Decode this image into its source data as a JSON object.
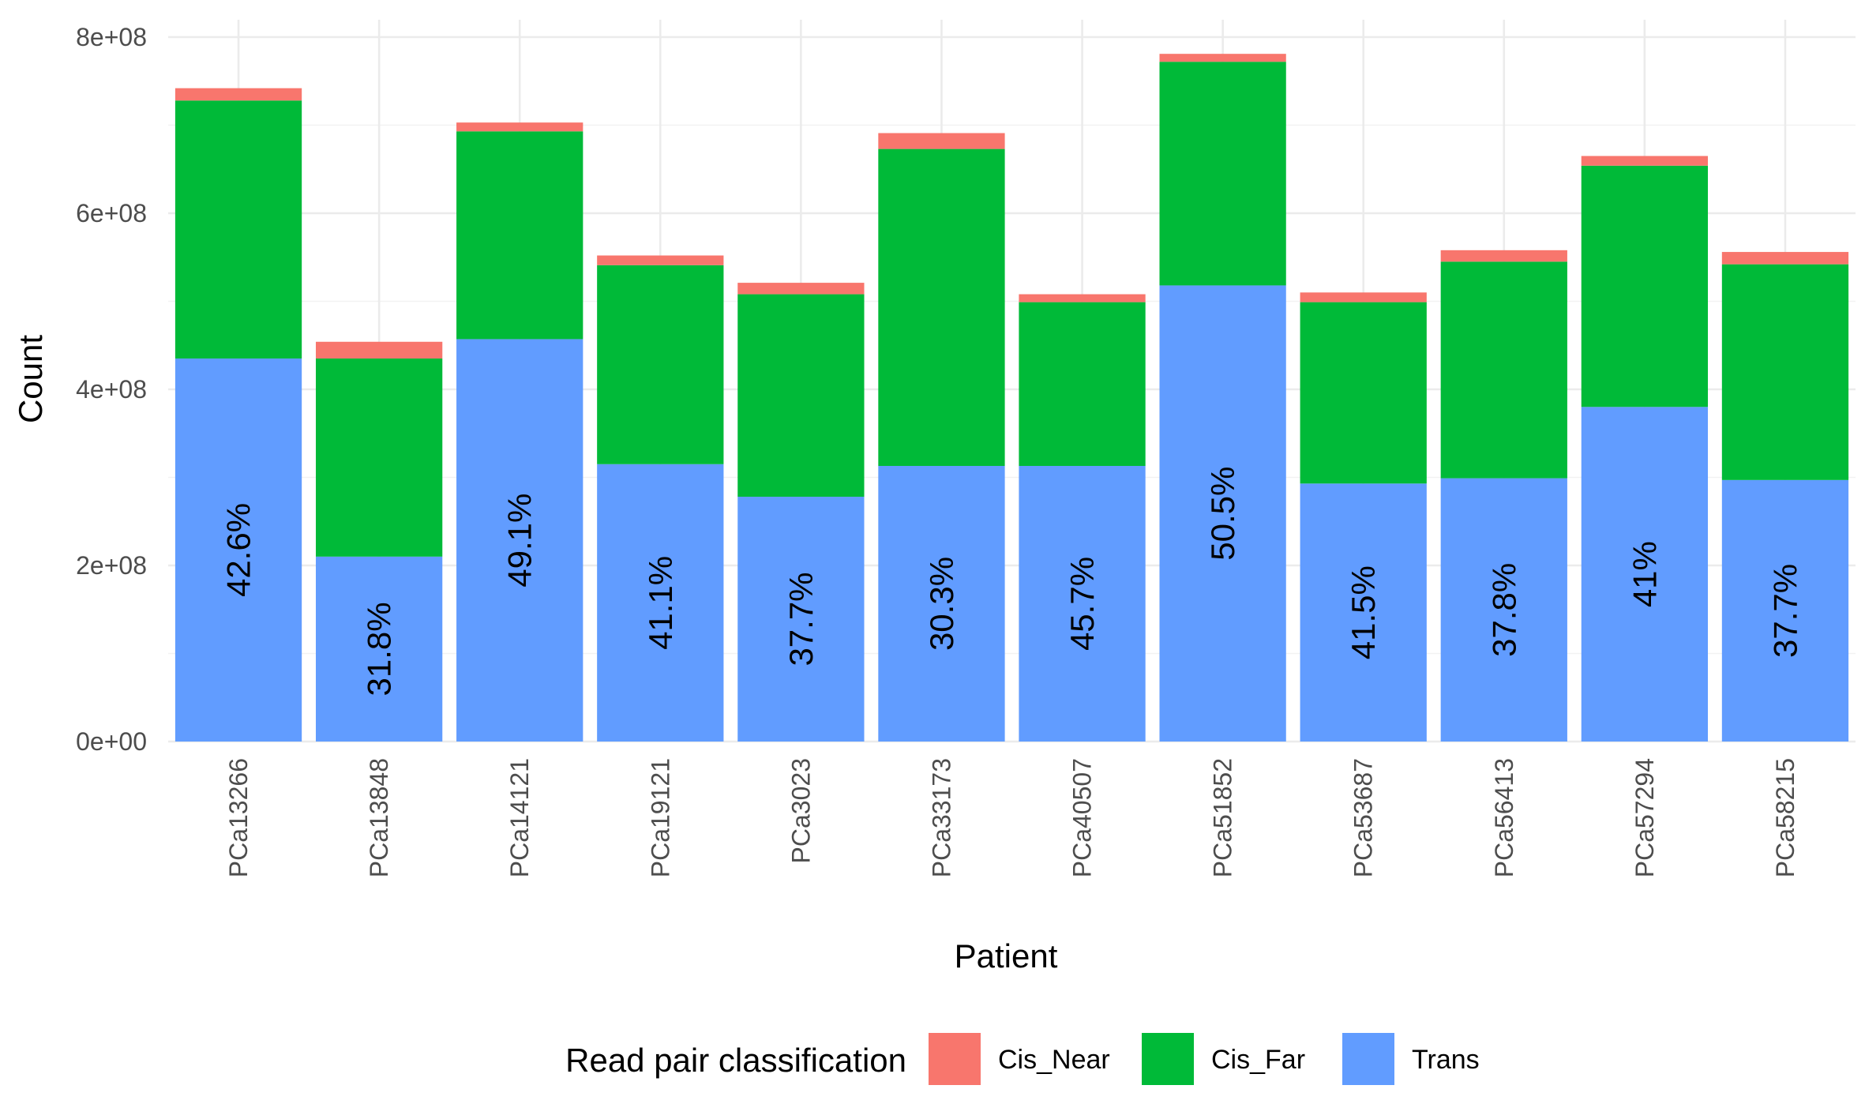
{
  "chart_data": {
    "type": "bar",
    "stacked": true,
    "xlabel": "Patient",
    "ylabel": "Count",
    "ylim": [
      0,
      800000000
    ],
    "y_ticks": [
      0,
      200000000,
      400000000,
      600000000,
      800000000
    ],
    "y_tick_labels": [
      "0e+00",
      "2e+08",
      "4e+08",
      "6e+08",
      "8e+08"
    ],
    "grid": true,
    "legend_position": "bottom",
    "legend_title": "Read pair classification",
    "categories": [
      "PCa13266",
      "PCa13848",
      "PCa14121",
      "PCa19121",
      "PCa3023",
      "PCa33173",
      "PCa40507",
      "PCa51852",
      "PCa53687",
      "PCa56413",
      "PCa57294",
      "PCa58215"
    ],
    "series": [
      {
        "name": "Trans",
        "color": "#619CFF",
        "values": [
          435000000,
          210000000,
          457000000,
          315000000,
          278000000,
          313000000,
          313000000,
          518000000,
          293000000,
          299000000,
          380000000,
          297000000
        ]
      },
      {
        "name": "Cis_Far",
        "color": "#00BA38",
        "values": [
          293000000,
          225000000,
          236000000,
          226000000,
          230000000,
          360000000,
          186000000,
          254000000,
          206000000,
          246000000,
          274000000,
          245000000
        ]
      },
      {
        "name": "Cis_Near",
        "color": "#F8766D",
        "values": [
          14000000,
          19000000,
          10000000,
          11000000,
          13000000,
          18000000,
          9000000,
          9000000,
          11000000,
          13000000,
          11000000,
          14000000
        ]
      }
    ],
    "legend_order": [
      "Cis_Near",
      "Cis_Far",
      "Trans"
    ],
    "bar_labels": [
      "42.6%",
      "31.8%",
      "49.1%",
      "41.1%",
      "37.7%",
      "30.3%",
      "45.7%",
      "50.5%",
      "41.5%",
      "37.8%",
      "41%",
      "37.7%"
    ]
  }
}
